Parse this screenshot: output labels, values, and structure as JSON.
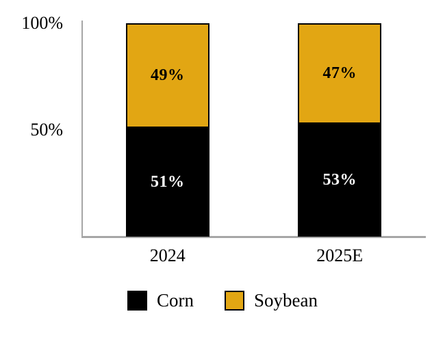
{
  "chart_data": {
    "type": "bar",
    "stacked": true,
    "title": "",
    "categories": [
      "2024",
      "2025E"
    ],
    "series": [
      {
        "name": "Corn",
        "color": "#000000",
        "label_color": "#FFFFFF",
        "values": [
          51,
          53
        ],
        "labels": [
          "51%",
          "53%"
        ]
      },
      {
        "name": "Soybean",
        "color": "#E2A613",
        "label_color": "#000000",
        "values": [
          49,
          47
        ],
        "labels": [
          "49%",
          "47%"
        ]
      }
    ],
    "ylim": [
      0,
      100
    ],
    "y_ticks": [
      {
        "label": "100%",
        "value": 100
      },
      {
        "label": "50%",
        "value": 50
      }
    ],
    "xlabel": "",
    "ylabel": "",
    "grid": false,
    "legend_position": "bottom"
  },
  "colors": {
    "background": "#FFFFFF",
    "axis_line": "#A6A6A6",
    "corn": "#000000",
    "soybean": "#E2A613"
  }
}
